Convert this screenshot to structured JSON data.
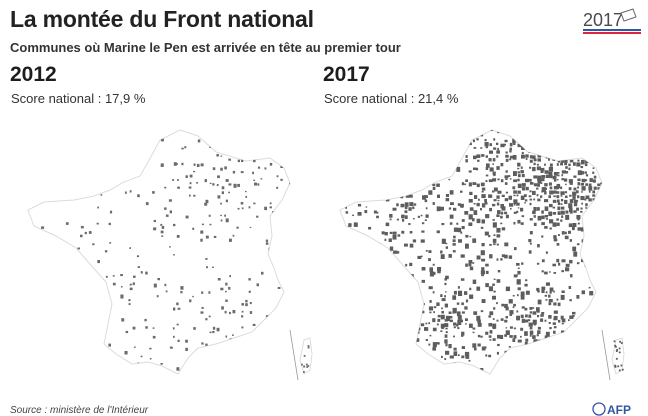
{
  "header": {
    "title": "La montée du Front national",
    "subtitle": "Communes où Marine le Pen est arrivée en tête au premier tour",
    "logo_text": "2017"
  },
  "maps": [
    {
      "year": "2012",
      "score_label": "Score national : 17,9 %",
      "national_score_pct": 17.9,
      "fill_color": "#6d6a6b",
      "density": 0.16
    },
    {
      "year": "2017",
      "score_label": "Score national : 21,4 %",
      "national_score_pct": 21.4,
      "fill_color": "#5f5c5d",
      "density": 0.52
    }
  ],
  "footer": {
    "source": "Source : ministère de l'Intérieur",
    "agency": "AFP"
  },
  "colors": {
    "land": "#ffffff",
    "border": "#dcdcdc",
    "communes": "#666364",
    "logo_blue": "#3554a6",
    "logo_red": "#d6293b"
  }
}
